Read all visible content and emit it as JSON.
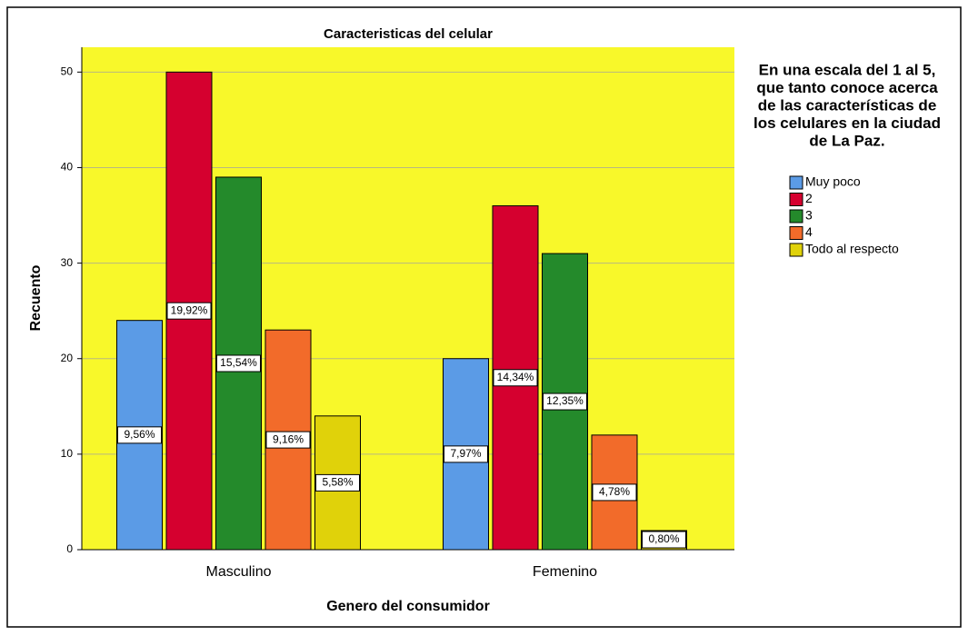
{
  "chart_data": {
    "type": "bar",
    "title": "Caracteristicas del celular",
    "x_label": "Genero del consumidor",
    "y_label": "Recuento",
    "legend_title": [
      "En una escala del 1 al 5,",
      "que tanto conoce acerca",
      "de las características de",
      "los celulares en la ciudad",
      "de La Paz."
    ],
    "categories": [
      "Masculino",
      "Femenino"
    ],
    "series": [
      {
        "name": "Muy poco",
        "color": "#5b9be6",
        "values": [
          24,
          20
        ],
        "percent_labels": [
          "9,56%",
          "7,97%"
        ]
      },
      {
        "name": "2",
        "color": "#d5002f",
        "values": [
          50,
          36
        ],
        "percent_labels": [
          "19,92%",
          "14,34%"
        ]
      },
      {
        "name": "3",
        "color": "#248a2b",
        "values": [
          39,
          31
        ],
        "percent_labels": [
          "15,54%",
          "12,35%"
        ]
      },
      {
        "name": "4",
        "color": "#f26b2a",
        "values": [
          23,
          12
        ],
        "percent_labels": [
          "9,16%",
          "4,78%"
        ]
      },
      {
        "name": "Todo al respecto",
        "color": "#e0d20a",
        "values": [
          14,
          2
        ],
        "percent_labels": [
          "5,58%",
          "0,80%"
        ]
      }
    ],
    "ylim": [
      0,
      52.6
    ],
    "yticks": [
      0,
      10,
      20,
      30,
      40,
      50
    ],
    "grid": true,
    "plot_background": "#f8f82a",
    "legend": "right"
  }
}
